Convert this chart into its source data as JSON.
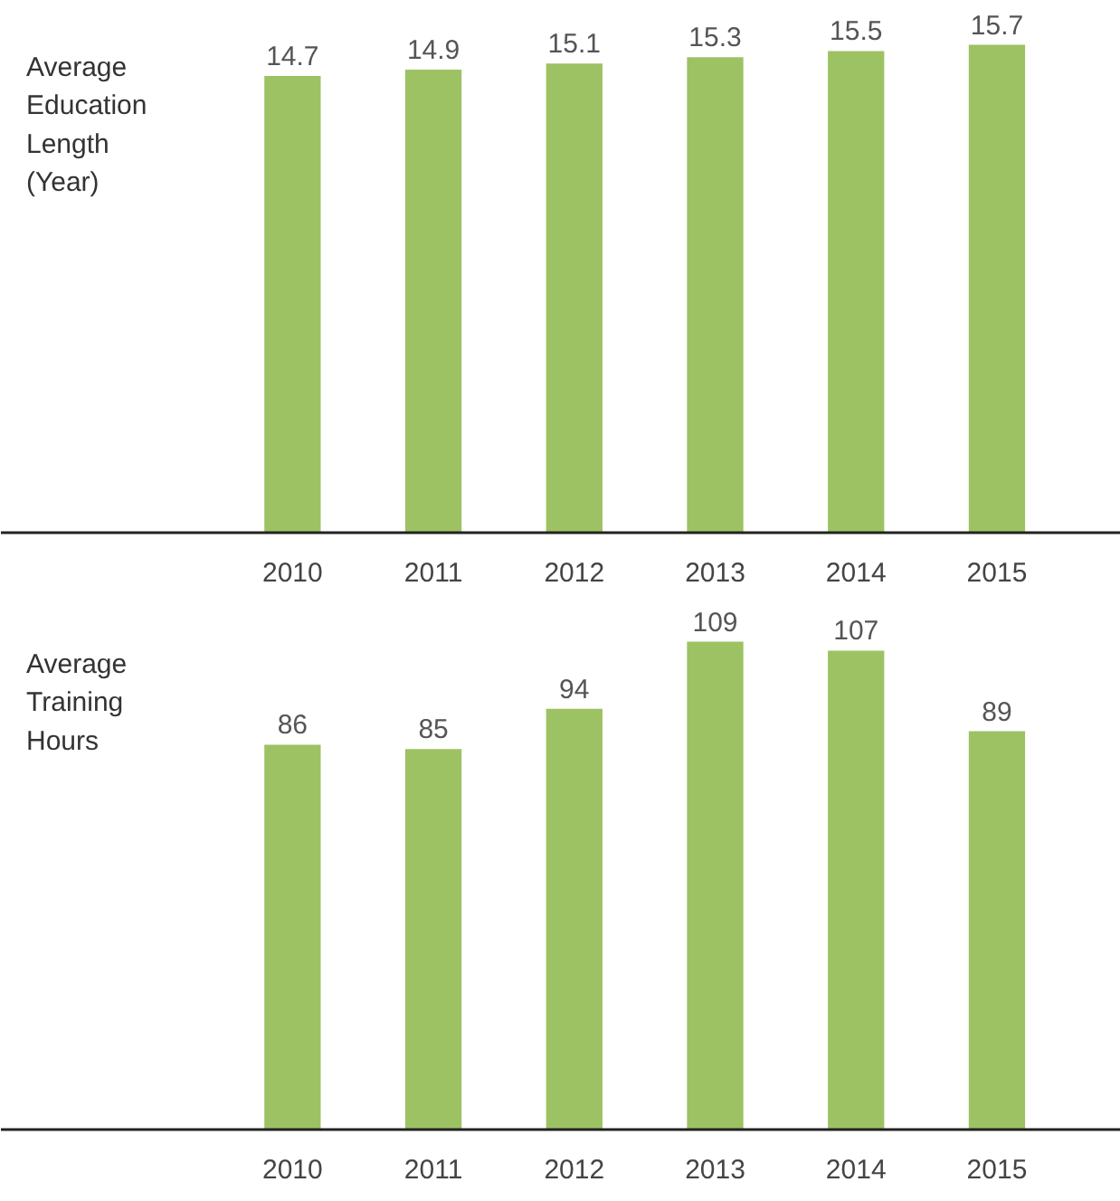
{
  "chart_data": [
    {
      "type": "bar",
      "title": "Average Education Length (Year)",
      "categories": [
        "2010",
        "2011",
        "2012",
        "2013",
        "2014",
        "2015"
      ],
      "values": [
        14.7,
        14.9,
        15.1,
        15.3,
        15.5,
        15.7
      ],
      "color": "#9dc263",
      "data_labels": true,
      "tick_labels": "x"
    },
    {
      "type": "bar",
      "title": "Average Training Hours",
      "categories": [
        "2010",
        "2011",
        "2012",
        "2013",
        "2014",
        "2015"
      ],
      "values": [
        86,
        85,
        94,
        109,
        107,
        89
      ],
      "color": "#9dc263",
      "data_labels": true,
      "tick_labels": "x"
    }
  ]
}
